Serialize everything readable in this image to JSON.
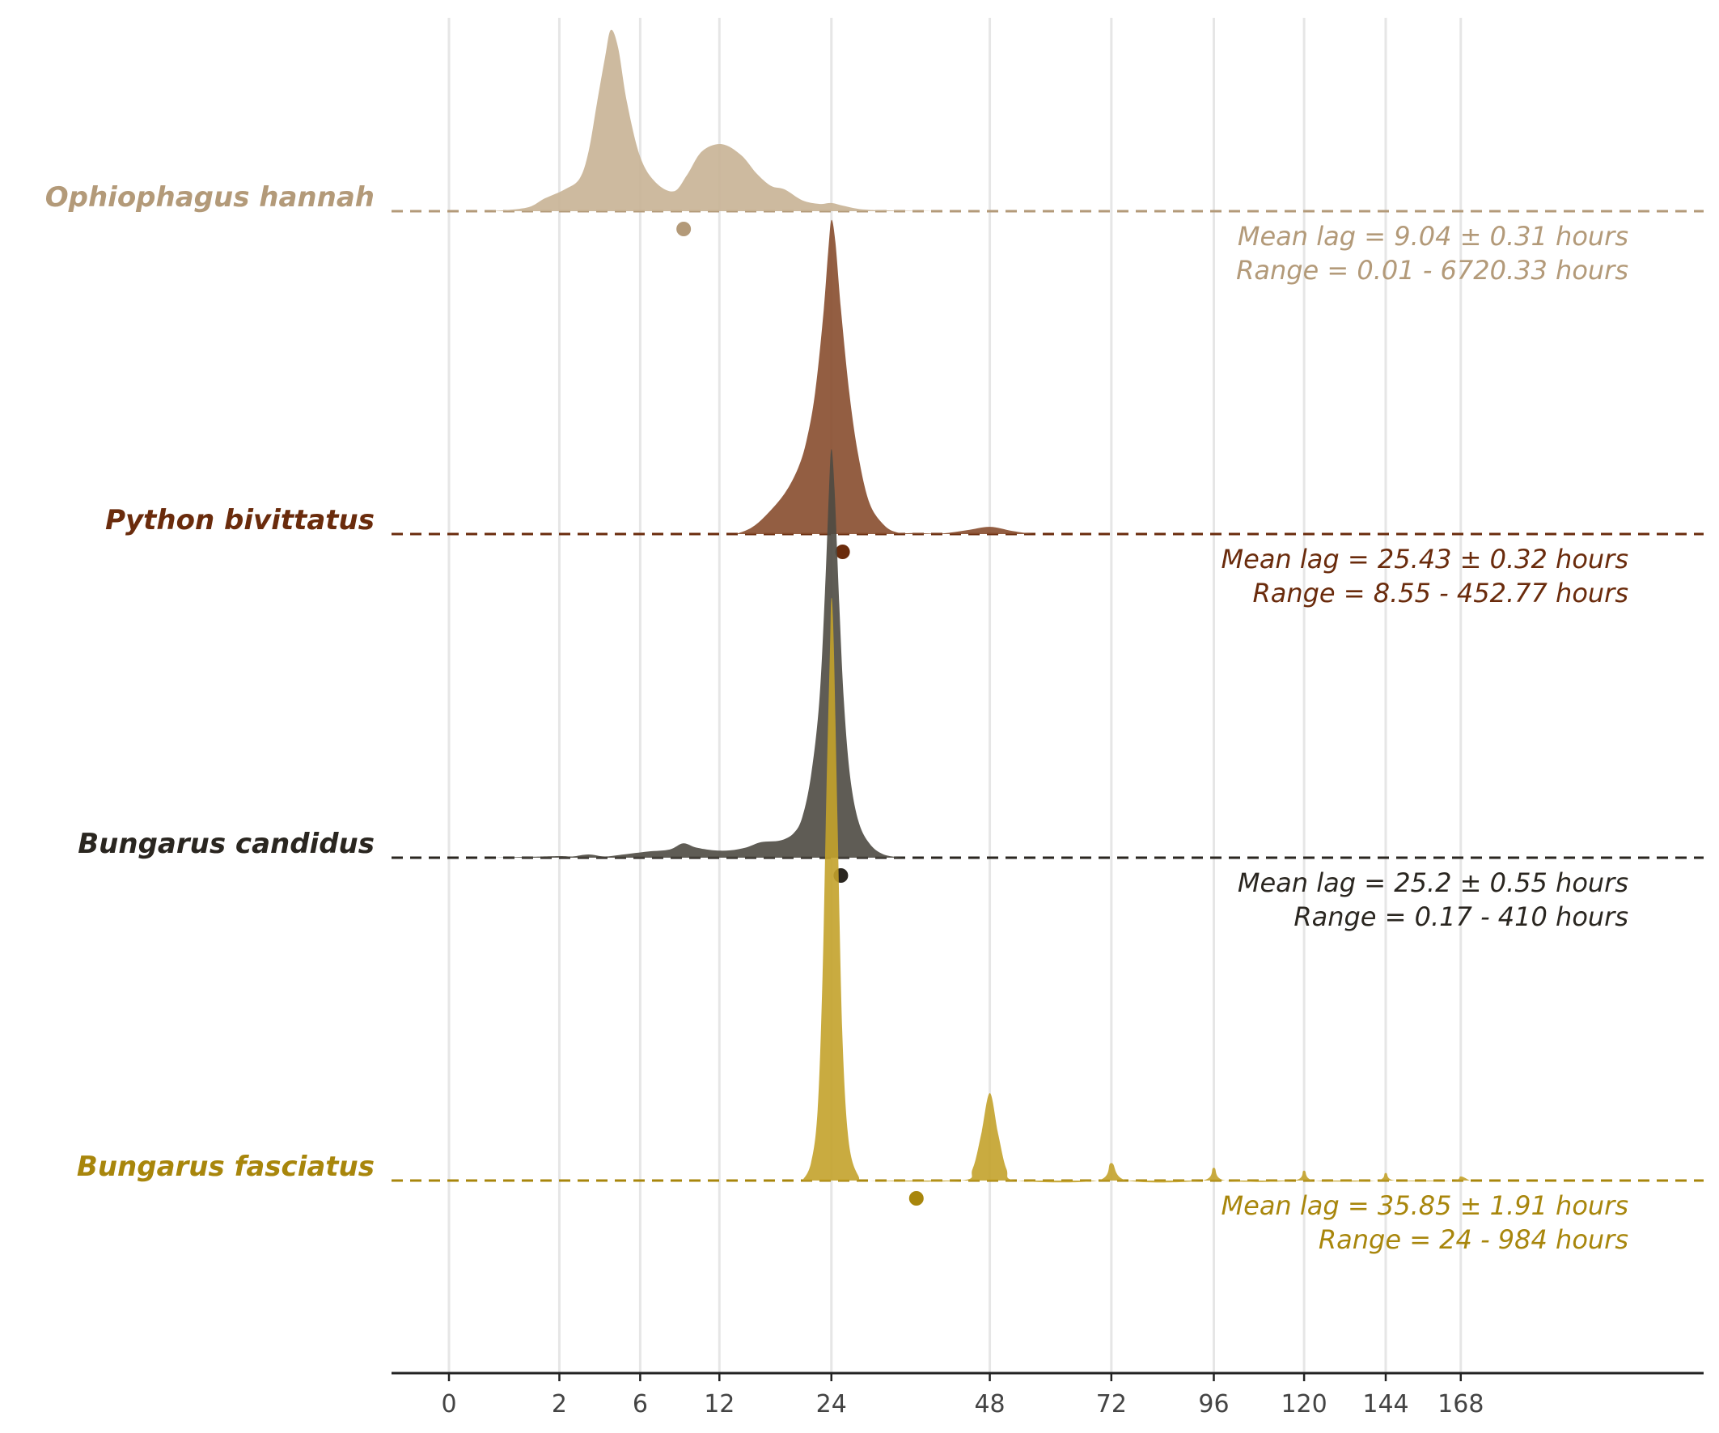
{
  "chart_data": {
    "type": "ridgeline",
    "title": "",
    "xlabel": "",
    "ylabel": "",
    "x_scale": "sqrt",
    "x_ticks": [
      0,
      2,
      6,
      12,
      24,
      48,
      72,
      96,
      120,
      144,
      168
    ],
    "xlim": [
      0,
      180
    ],
    "grid": "vertical",
    "series": [
      {
        "name": "Ophiophagus hannah",
        "color": "#b39a79",
        "fill": "#c8b295",
        "mean": 9.04,
        "mean_label": "Mean lag = 9.04 ± 0.31 hours",
        "range_label": "Range = 0.01 - 6720.33 hours",
        "density": [
          [
            0.3,
            0
          ],
          [
            1.0,
            0.02
          ],
          [
            1.5,
            0.07
          ],
          [
            2.2,
            0.12
          ],
          [
            2.8,
            0.18
          ],
          [
            3.2,
            0.33
          ],
          [
            3.6,
            0.6
          ],
          [
            4.0,
            0.85
          ],
          [
            4.3,
            1.0
          ],
          [
            4.7,
            0.9
          ],
          [
            5.2,
            0.6
          ],
          [
            6.0,
            0.3
          ],
          [
            7.0,
            0.16
          ],
          [
            8.3,
            0.11
          ],
          [
            9.3,
            0.2
          ],
          [
            10.5,
            0.33
          ],
          [
            12.2,
            0.37
          ],
          [
            14.0,
            0.31
          ],
          [
            15.5,
            0.21
          ],
          [
            17.0,
            0.14
          ],
          [
            18.5,
            0.12
          ],
          [
            20.5,
            0.06
          ],
          [
            22.5,
            0.04
          ],
          [
            24.0,
            0.045
          ],
          [
            25.5,
            0.03
          ],
          [
            28.0,
            0.01
          ],
          [
            32.0,
            0.004
          ],
          [
            40.0,
            0
          ]
        ]
      },
      {
        "name": "Python bivittatus",
        "color": "#6a2b0c",
        "fill": "#874d2e",
        "mean": 25.43,
        "mean_label": "Mean lag = 25.43 ± 0.32 hours",
        "range_label": "Range = 8.55 - 452.77 hours",
        "density": [
          [
            13.5,
            0
          ],
          [
            15.0,
            0.02
          ],
          [
            16.5,
            0.06
          ],
          [
            18.5,
            0.13
          ],
          [
            20.0,
            0.21
          ],
          [
            21.0,
            0.3
          ],
          [
            22.0,
            0.45
          ],
          [
            23.0,
            0.7
          ],
          [
            23.6,
            0.9
          ],
          [
            24.0,
            1.0
          ],
          [
            24.5,
            0.93
          ],
          [
            25.2,
            0.72
          ],
          [
            26.3,
            0.45
          ],
          [
            27.5,
            0.25
          ],
          [
            29.0,
            0.1
          ],
          [
            31.0,
            0.03
          ],
          [
            33.0,
            0.005
          ],
          [
            36.0,
            0.003
          ],
          [
            40.0,
            0.002
          ],
          [
            44.0,
            0.012
          ],
          [
            48.0,
            0.023
          ],
          [
            52.0,
            0.01
          ],
          [
            56.0,
            0
          ]
        ]
      },
      {
        "name": "Bungarus candidus",
        "color": "#2a2620",
        "fill": "#4e4a43",
        "mean": 25.2,
        "mean_label": "Mean lag = 25.2 ± 0.55 hours",
        "range_label": "Range = 0.17 - 410 hours",
        "density": [
          [
            0.3,
            0
          ],
          [
            1.0,
            0.002
          ],
          [
            2.0,
            0.004
          ],
          [
            2.5,
            0.003
          ],
          [
            3.2,
            0.008
          ],
          [
            4.0,
            0.003
          ],
          [
            5.0,
            0.008
          ],
          [
            6.5,
            0.015
          ],
          [
            8.0,
            0.02
          ],
          [
            9.0,
            0.035
          ],
          [
            10.0,
            0.025
          ],
          [
            11.5,
            0.018
          ],
          [
            13.0,
            0.018
          ],
          [
            14.5,
            0.025
          ],
          [
            16.0,
            0.038
          ],
          [
            18.0,
            0.042
          ],
          [
            19.5,
            0.06
          ],
          [
            20.5,
            0.1
          ],
          [
            21.5,
            0.2
          ],
          [
            22.5,
            0.38
          ],
          [
            23.2,
            0.65
          ],
          [
            23.7,
            0.9
          ],
          [
            24.0,
            1.0
          ],
          [
            24.4,
            0.9
          ],
          [
            25.0,
            0.62
          ],
          [
            25.6,
            0.38
          ],
          [
            26.4,
            0.2
          ],
          [
            27.5,
            0.09
          ],
          [
            29.0,
            0.035
          ],
          [
            31.0,
            0.008
          ],
          [
            34.0,
            0
          ]
        ]
      },
      {
        "name": "Bungarus fasciatus",
        "color": "#a8860c",
        "fill": "#c3a22b",
        "mean": 35.85,
        "mean_label": "Mean lag = 35.85 ± 1.91 hours",
        "range_label": "Range = 24 - 984 hours",
        "density": [
          [
            20.5,
            0
          ],
          [
            21.5,
            0.03
          ],
          [
            22.3,
            0.12
          ],
          [
            22.9,
            0.35
          ],
          [
            23.4,
            0.68
          ],
          [
            23.8,
            0.9
          ],
          [
            24.0,
            1.0
          ],
          [
            24.3,
            0.92
          ],
          [
            24.8,
            0.6
          ],
          [
            25.4,
            0.25
          ],
          [
            26.2,
            0.07
          ],
          [
            27.5,
            0.008
          ],
          [
            29.0,
            0
          ],
          [
            43.0,
            0
          ],
          [
            45.0,
            0.02
          ],
          [
            46.5,
            0.08
          ],
          [
            48.0,
            0.15
          ],
          [
            49.5,
            0.08
          ],
          [
            51.0,
            0.02
          ],
          [
            53.0,
            0
          ],
          [
            69.0,
            0
          ],
          [
            72.0,
            0.03
          ],
          [
            75.5,
            0
          ],
          [
            93.0,
            0
          ],
          [
            96.0,
            0.022
          ],
          [
            99.0,
            0
          ],
          [
            117.0,
            0
          ],
          [
            120.0,
            0.017
          ],
          [
            123.0,
            0
          ],
          [
            141.0,
            0
          ],
          [
            144.0,
            0.013
          ],
          [
            147.0,
            0
          ],
          [
            165.0,
            0
          ],
          [
            168.0,
            0.007
          ],
          [
            171.0,
            0
          ]
        ]
      }
    ]
  }
}
